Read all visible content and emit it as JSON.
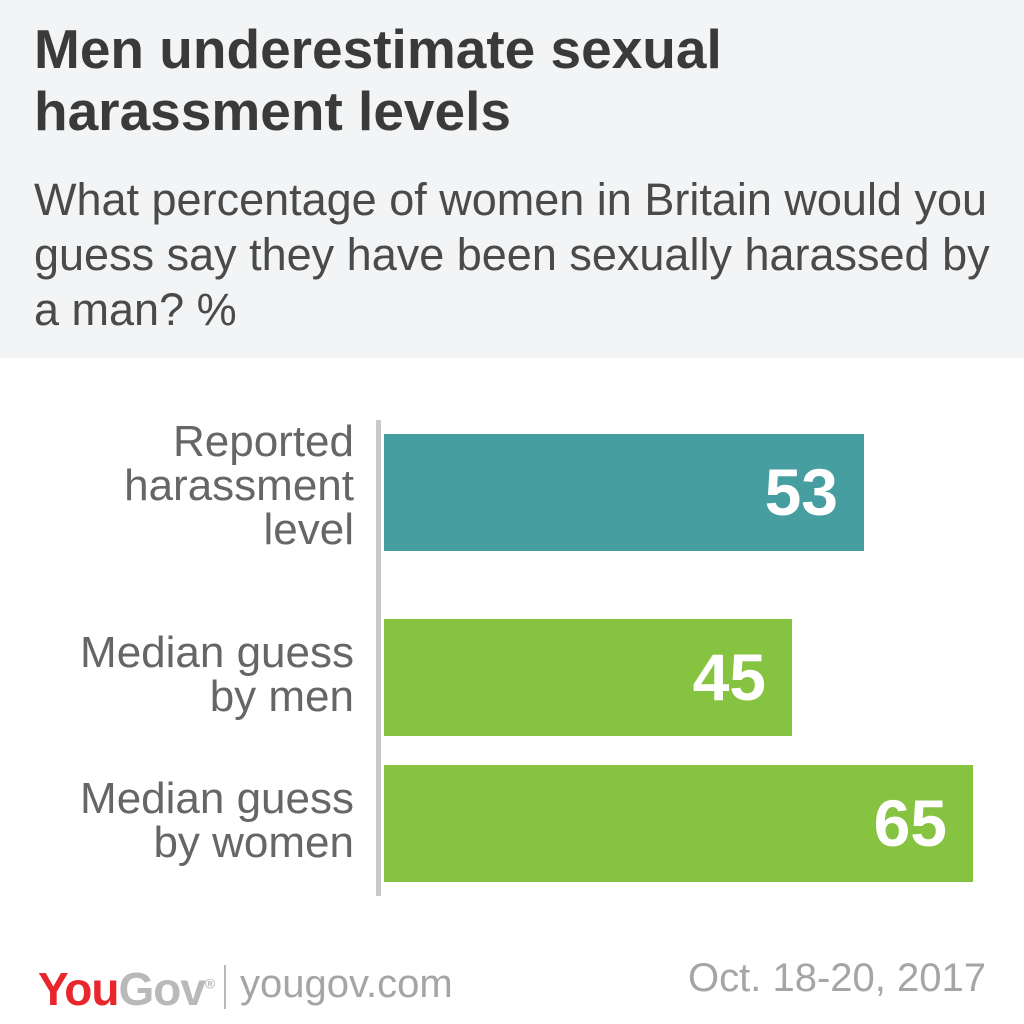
{
  "title": "Men underestimate sexual harassment levels",
  "subtitle": "What percentage of women in Britain would you guess say they have been sexually harassed by a man? %",
  "chart_data": {
    "type": "bar",
    "orientation": "horizontal",
    "categories": [
      "Reported harassment level",
      "Median guess by men",
      "Median guess by women"
    ],
    "category_labels": [
      "Reported\nharassment\nlevel",
      "Median guess\nby men",
      "Median guess\nby women"
    ],
    "values": [
      53,
      45,
      65
    ],
    "bar_colors": [
      "#469ea0",
      "#85c340",
      "#85c340"
    ],
    "xlim": [
      0,
      70
    ],
    "grid": false,
    "legend": "none",
    "unit": "%"
  },
  "footer": {
    "logo_you": "You",
    "logo_gov": "Gov",
    "logo_mark": "®",
    "url": "yougov.com",
    "date": "Oct. 18-20, 2017"
  },
  "colors": {
    "header_bg": "#f3f4f5",
    "brand_red": "#e8262b",
    "teal": "#469ea0",
    "green": "#85c340"
  }
}
